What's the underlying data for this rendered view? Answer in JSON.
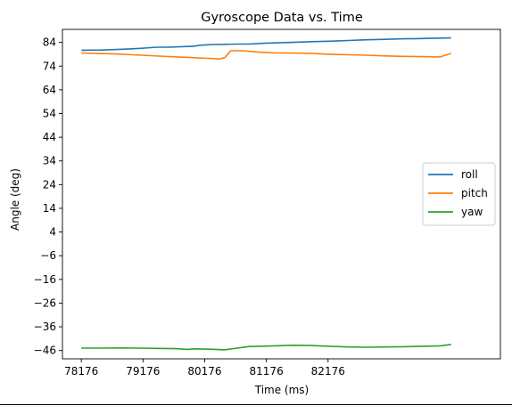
{
  "chart_data": {
    "type": "line",
    "title": "Gyroscope Data vs. Time",
    "xlabel": "Time (ms)",
    "ylabel": "Angle (deg)",
    "xlim": [
      77870,
      84970
    ],
    "ylim": [
      -49.5,
      89.5
    ],
    "xticks": [
      78176,
      79176,
      80176,
      81176,
      82176
    ],
    "xtick_labels": [
      "78176",
      "79176",
      "80176",
      "81176",
      "82176"
    ],
    "yticks": [
      84,
      74,
      64,
      54,
      44,
      34,
      24,
      14,
      4,
      -6,
      -16,
      -26,
      -36,
      -46
    ],
    "ytick_labels": [
      "84",
      "74",
      "64",
      "54",
      "44",
      "34",
      "24",
      "14",
      "4",
      "−6",
      "−16",
      "−26",
      "−36",
      "−46"
    ],
    "grid": false,
    "legend_position": "center-right",
    "series": [
      {
        "name": "roll",
        "color": "#1f77b4",
        "x": [
          78176,
          78500,
          78800,
          79000,
          79200,
          79400,
          79600,
          79800,
          80000,
          80100,
          80300,
          80500,
          80700,
          80900,
          81100,
          81300,
          81600,
          81900,
          82200,
          82500,
          82800,
          83100,
          83400,
          83600,
          83800,
          84000,
          84170
        ],
        "y": [
          80.7,
          80.8,
          81.1,
          81.3,
          81.6,
          82.0,
          82.0,
          82.2,
          82.4,
          82.8,
          83.1,
          83.2,
          83.3,
          83.3,
          83.6,
          83.8,
          84.0,
          84.3,
          84.5,
          84.8,
          85.1,
          85.3,
          85.5,
          85.6,
          85.7,
          85.8,
          85.9
        ]
      },
      {
        "name": "pitch",
        "color": "#ff7f0e",
        "x": [
          78176,
          78500,
          78700,
          79000,
          79300,
          79600,
          79900,
          80100,
          80300,
          80400,
          80500,
          80600,
          80800,
          81000,
          81300,
          81600,
          81900,
          82200,
          82500,
          82800,
          83100,
          83400,
          83700,
          84000,
          84170
        ],
        "y": [
          79.5,
          79.3,
          79.2,
          78.8,
          78.4,
          78.0,
          77.7,
          77.4,
          77.2,
          77.0,
          77.5,
          80.5,
          80.5,
          80.0,
          79.6,
          79.5,
          79.4,
          79.0,
          78.8,
          78.6,
          78.3,
          78.1,
          78.0,
          77.9,
          79.4
        ]
      },
      {
        "name": "yaw",
        "color": "#2ca02c",
        "x": [
          78176,
          78500,
          78800,
          79100,
          79400,
          79700,
          79900,
          80000,
          80200,
          80400,
          80500,
          80700,
          80900,
          81100,
          81300,
          81600,
          81900,
          82200,
          82500,
          82800,
          83100,
          83400,
          83700,
          84000,
          84170
        ],
        "y": [
          -45.0,
          -45.0,
          -44.9,
          -45.0,
          -45.1,
          -45.2,
          -45.5,
          -45.3,
          -45.4,
          -45.6,
          -45.7,
          -45.0,
          -44.3,
          -44.2,
          -44.0,
          -43.8,
          -43.9,
          -44.2,
          -44.5,
          -44.6,
          -44.5,
          -44.4,
          -44.2,
          -44.0,
          -43.4
        ]
      }
    ]
  }
}
